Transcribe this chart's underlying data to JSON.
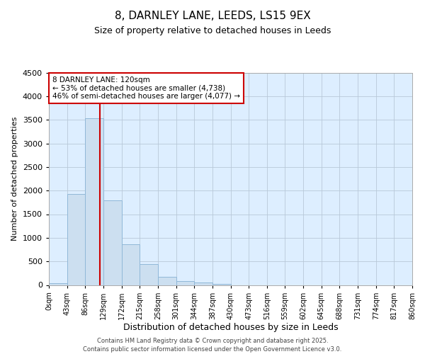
{
  "title1": "8, DARNLEY LANE, LEEDS, LS15 9EX",
  "title2": "Size of property relative to detached houses in Leeds",
  "xlabel": "Distribution of detached houses by size in Leeds",
  "ylabel": "Number of detached properties",
  "bar_edges": [
    0,
    43,
    86,
    129,
    172,
    215,
    258,
    301,
    344,
    387,
    430,
    473,
    516,
    559,
    602,
    645,
    688,
    731,
    774,
    817,
    860
  ],
  "bar_heights": [
    35,
    1930,
    3530,
    1800,
    860,
    450,
    170,
    90,
    55,
    30,
    0,
    0,
    0,
    0,
    0,
    0,
    0,
    0,
    0,
    0
  ],
  "bar_color": "#ccdff0",
  "bar_edgecolor": "#90b8d8",
  "property_line_x": 120,
  "property_line_color": "#cc0000",
  "annotation_text": "8 DARNLEY LANE: 120sqm\n← 53% of detached houses are smaller (4,738)\n46% of semi-detached houses are larger (4,077) →",
  "annotation_box_edgecolor": "#cc0000",
  "ylim": [
    0,
    4500
  ],
  "yticks": [
    0,
    500,
    1000,
    1500,
    2000,
    2500,
    3000,
    3500,
    4000,
    4500
  ],
  "grid_color": "#b8c8d8",
  "background_color": "#ddeeff",
  "footer_text": "Contains HM Land Registry data © Crown copyright and database right 2025.\nContains public sector information licensed under the Open Government Licence v3.0.",
  "tick_labels": [
    "0sqm",
    "43sqm",
    "86sqm",
    "129sqm",
    "172sqm",
    "215sqm",
    "258sqm",
    "301sqm",
    "344sqm",
    "387sqm",
    "430sqm",
    "473sqm",
    "516sqm",
    "559sqm",
    "602sqm",
    "645sqm",
    "688sqm",
    "731sqm",
    "774sqm",
    "817sqm",
    "860sqm"
  ],
  "title1_fontsize": 11,
  "title2_fontsize": 9,
  "ylabel_fontsize": 8,
  "xlabel_fontsize": 9,
  "ytick_fontsize": 8,
  "xtick_fontsize": 7,
  "annotation_fontsize": 7.5,
  "footer_fontsize": 6
}
